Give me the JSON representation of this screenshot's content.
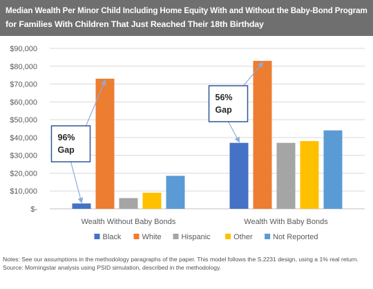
{
  "header": {
    "title_line1": "Median Wealth Per Minor Child Including Home Equity With and Without the Baby-Bond Program",
    "title_line2": "for Families With Children That Just Reached Their 18th Birthday"
  },
  "chart_data": {
    "type": "bar",
    "categories": [
      "Wealth Without Baby Bonds",
      "Wealth With Baby Bonds"
    ],
    "series": [
      {
        "name": "Black",
        "color": "#4472c4",
        "values": [
          3000,
          37000
        ]
      },
      {
        "name": "White",
        "color": "#ed7d31",
        "values": [
          73000,
          83000
        ]
      },
      {
        "name": "Hispanic",
        "color": "#a5a5a5",
        "values": [
          6000,
          37000
        ]
      },
      {
        "name": "Other",
        "color": "#ffc000",
        "values": [
          9000,
          38000
        ]
      },
      {
        "name": "Not Reported",
        "color": "#5b9bd5",
        "values": [
          18500,
          44000
        ]
      }
    ],
    "ylim": [
      0,
      90000
    ],
    "yticks": [
      0,
      10000,
      20000,
      30000,
      40000,
      50000,
      60000,
      70000,
      80000,
      90000
    ],
    "ytick_labels": [
      "$-",
      "$10,000",
      "$20,000",
      "$30,000",
      "$40,000",
      "$50,000",
      "$60,000",
      "$70,000",
      "$80,000",
      "$90,000"
    ],
    "grid": true,
    "legend_position": "bottom",
    "annotations": [
      {
        "group": 0,
        "line1": "96%",
        "line2": "Gap"
      },
      {
        "group": 1,
        "line1": "56%",
        "line2": "Gap"
      }
    ],
    "annotation_border_color": "#2e5597",
    "arrow_color": "#8eaadb"
  },
  "notes": {
    "note": "Notes: See our assumptions in the methodology paragraphs of the paper. This model follows the S.2231 design, using a 1% real return.",
    "source": "Source: Morningstar analysis using PSID simulation, described in the methodology."
  }
}
